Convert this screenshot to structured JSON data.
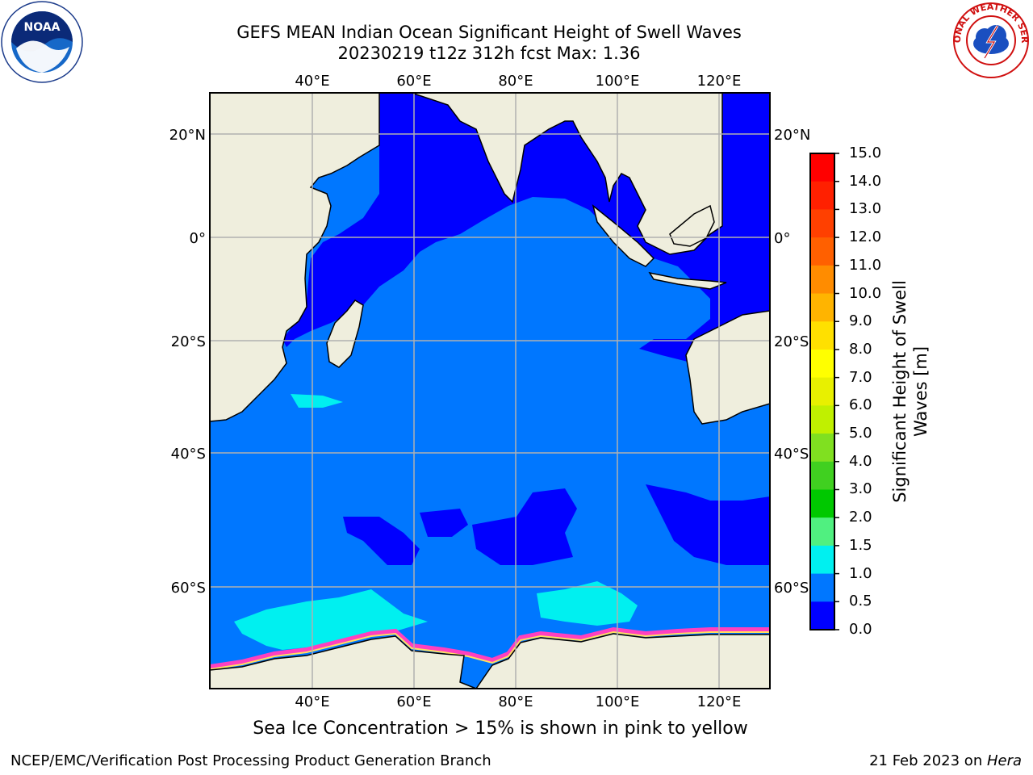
{
  "title_line1": "GEFS MEAN Indian Ocean Significant Height of Swell Waves",
  "title_line2": "20230219 t12z 312h fcst   Max: 1.36",
  "logos": {
    "noaa_text": "NOAA",
    "nws_text": "NATIONAL WEATHER SERVICE"
  },
  "map": {
    "lon_ticks": [
      "40°E",
      "60°E",
      "80°E",
      "100°E",
      "120°E"
    ],
    "lat_ticks": [
      "20°N",
      "0°",
      "20°S",
      "40°S",
      "60°S"
    ],
    "colors": {
      "land": "#efeedd",
      "swell_0_05": "#0000ff",
      "swell_05_10": "#0077ff",
      "swell_10_15": "#00f0f0",
      "ice": "#ff40c0",
      "grid": "#b0b0b0"
    }
  },
  "colorbar": {
    "title_line1": "Significant Height of Swell",
    "title_line2": "Waves [m]",
    "tick_labels": [
      "15.0",
      "14.0",
      "13.0",
      "12.0",
      "11.0",
      "10.0",
      "9.0",
      "8.0",
      "7.0",
      "6.0",
      "5.0",
      "4.0",
      "3.0",
      "2.0",
      "1.5",
      "1.0",
      "0.5",
      "0.0"
    ],
    "colors": [
      "#ff0000",
      "#ff2000",
      "#ff4000",
      "#ff6000",
      "#ff8c00",
      "#ffb400",
      "#ffe000",
      "#ffff00",
      "#e8f000",
      "#c0f000",
      "#80e020",
      "#40d020",
      "#00c800",
      "#50f080",
      "#a0fff0",
      "#40ffe0",
      "#00f0f0",
      "#0077ff",
      "#0000ff"
    ]
  },
  "subtitle": "Sea Ice Concentration > 15% is shown in pink to yellow",
  "footer_left": "NCEP/EMC/Verification Post Processing Product Generation Branch",
  "footer_date": "21 Feb 2023 on ",
  "footer_host": "Hera"
}
